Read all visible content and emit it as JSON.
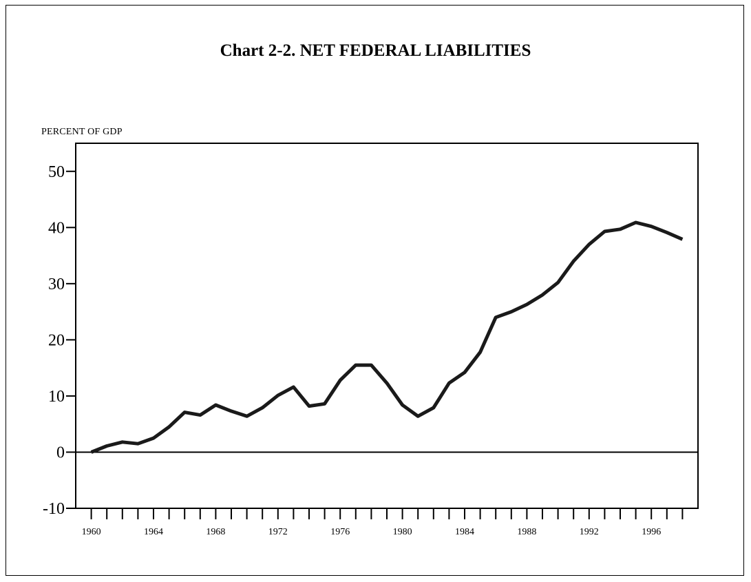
{
  "chart_data": {
    "type": "line",
    "title": "Chart 2-2.  NET  FEDERAL  LIABILITIES",
    "ylabel": "PERCENT  OF  GDP",
    "xlabel": "",
    "xlim": [
      1959,
      1999
    ],
    "ylim": [
      -10,
      55
    ],
    "y_ticks": [
      -10,
      0,
      10,
      20,
      30,
      40,
      50
    ],
    "x_ticks": [
      1960,
      1961,
      1962,
      1963,
      1964,
      1965,
      1966,
      1967,
      1968,
      1969,
      1970,
      1971,
      1972,
      1973,
      1974,
      1975,
      1976,
      1977,
      1978,
      1979,
      1980,
      1981,
      1982,
      1983,
      1984,
      1985,
      1986,
      1987,
      1988,
      1989,
      1990,
      1991,
      1992,
      1993,
      1994,
      1995,
      1996,
      1997,
      1998
    ],
    "x_tick_labels": [
      "1960",
      "1964",
      "1968",
      "1972",
      "1976",
      "1980",
      "1984",
      "1988",
      "1992",
      "1996"
    ],
    "zero_line": true,
    "grid": false,
    "series": [
      {
        "x": [
          1960,
          1961,
          1962,
          1963,
          1964,
          1965,
          1966,
          1967,
          1968,
          1969,
          1970,
          1971,
          1972,
          1973,
          1974,
          1975,
          1976,
          1977,
          1978,
          1979,
          1980,
          1981,
          1982,
          1983,
          1984,
          1985,
          1986,
          1987,
          1988,
          1989,
          1990,
          1991,
          1992,
          1993,
          1994,
          1995,
          1996,
          1997,
          1998
        ],
        "values": [
          0,
          1.1,
          1.8,
          1.5,
          2.5,
          4.5,
          7.1,
          6.6,
          8.4,
          7.3,
          6.4,
          7.9,
          10.1,
          11.6,
          8.2,
          8.6,
          12.8,
          15.5,
          15.5,
          12.3,
          8.4,
          6.4,
          7.9,
          12.3,
          14.2,
          17.8,
          24.0,
          25.0,
          26.3,
          28.0,
          30.2,
          34.0,
          37.0,
          39.3,
          39.7,
          40.9,
          40.2,
          39.1,
          37.9
        ]
      }
    ]
  }
}
